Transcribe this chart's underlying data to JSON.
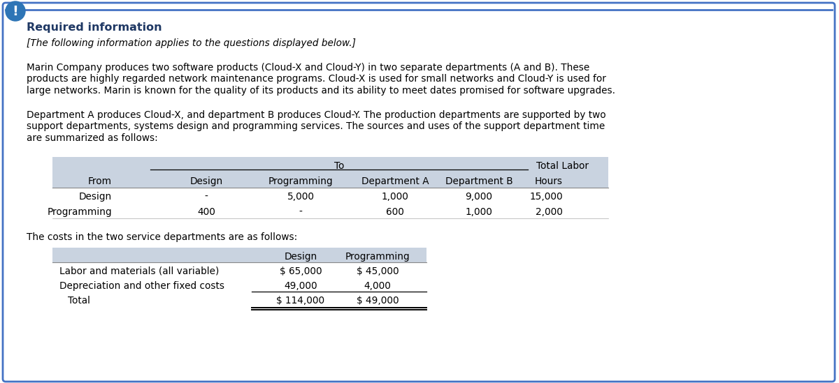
{
  "title": "Required information",
  "subtitle": "[The following information applies to the questions displayed below.]",
  "paragraph1_lines": [
    "Marin Company produces two software products (Cloud-X and Cloud-Y) in two separate departments (A and B). These",
    "products are highly regarded network maintenance programs. Cloud-X is used for small networks and Cloud-Y is used for",
    "large networks. Marin is known for the quality of its products and its ability to meet dates promised for software upgrades."
  ],
  "paragraph2_lines": [
    "Department A produces Cloud-X, and department B produces Cloud-Y. The production departments are supported by two",
    "support departments, systems design and programming services. The sources and uses of the support department time",
    "are summarized as follows:"
  ],
  "table1_header_top_label": "To",
  "table1_header_top_label2": "Total Labor",
  "table1_header_bot": [
    "From",
    "Design",
    "Programming",
    "Department A",
    "Department B",
    "Hours"
  ],
  "table1_rows": [
    [
      "Design",
      "-",
      "5,000",
      "1,000",
      "9,000",
      "15,000"
    ],
    [
      "Programming",
      "400",
      "-",
      "600",
      "1,000",
      "2,000"
    ]
  ],
  "costs_label": "The costs in the two service departments are as follows:",
  "table2_header": [
    "Design",
    "Programming"
  ],
  "table2_rows": [
    [
      "Labor and materials (all variable)",
      "$ 65,000",
      "$ 45,000"
    ],
    [
      "Depreciation and other fixed costs",
      "49,000",
      "4,000"
    ],
    [
      "Total",
      "$ 114,000",
      "$ 49,000"
    ]
  ],
  "bg_color": "#ffffff",
  "border_color": "#4472c4",
  "title_color": "#1f3864",
  "table_header_bg": "#c9d3e0",
  "text_color": "#000000",
  "icon_bg": "#2e75b6",
  "icon_color": "#ffffff",
  "body_fontsize": 9.8,
  "title_fontsize": 11.5
}
